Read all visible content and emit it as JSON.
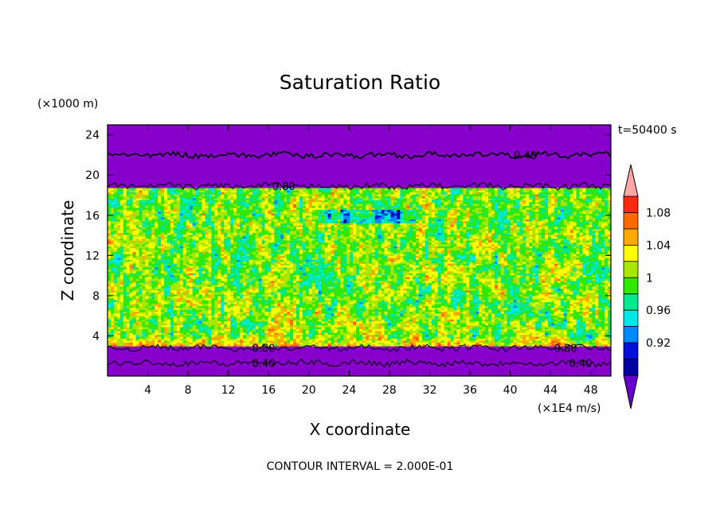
{
  "chart_data": {
    "type": "heatmap",
    "title": "Saturation Ratio",
    "xlabel": "X coordinate",
    "ylabel": "Z coordinate",
    "x_units": "(×1E4 m/s)",
    "y_units": "(×1000 m)",
    "time_label": "t=50400 s",
    "footer": "CONTOUR INTERVAL = 2.000E-01",
    "xlim": [
      0,
      50
    ],
    "ylim": [
      0,
      25
    ],
    "x_ticks": [
      "4",
      "8",
      "12",
      "16",
      "20",
      "24",
      "28",
      "32",
      "36",
      "40",
      "44",
      "48"
    ],
    "y_ticks": [
      "4",
      "8",
      "12",
      "16",
      "20",
      "24"
    ],
    "contour_lines": [
      {
        "label": "0.40",
        "z": 22
      },
      {
        "label": "0.80",
        "z": 18.9
      },
      {
        "label": "0.80",
        "z": 2.8
      },
      {
        "label": "0.40",
        "z": 1.3
      }
    ],
    "colorbar": {
      "labels": [
        "1.08",
        "1.04",
        "1",
        "0.96",
        "0.92"
      ],
      "level_values": [
        0.9,
        0.92,
        0.94,
        0.96,
        0.98,
        1.0,
        1.02,
        1.04,
        1.06,
        1.08,
        1.1
      ],
      "colors": [
        "#ffa6a6",
        "#ff2a10",
        "#ff6a00",
        "#ffa800",
        "#ffff00",
        "#a8e800",
        "#30e800",
        "#00e890",
        "#00e8e8",
        "#0088ff",
        "#0010d8",
        "#0000a0",
        "#6600cc"
      ]
    },
    "regions": {
      "dry_color": "#8800cc",
      "upper_dry_zlim": [
        18.7,
        25
      ],
      "lower_dry_zlim": [
        0,
        3
      ],
      "cloud_zlim": [
        3,
        18.7
      ]
    }
  }
}
